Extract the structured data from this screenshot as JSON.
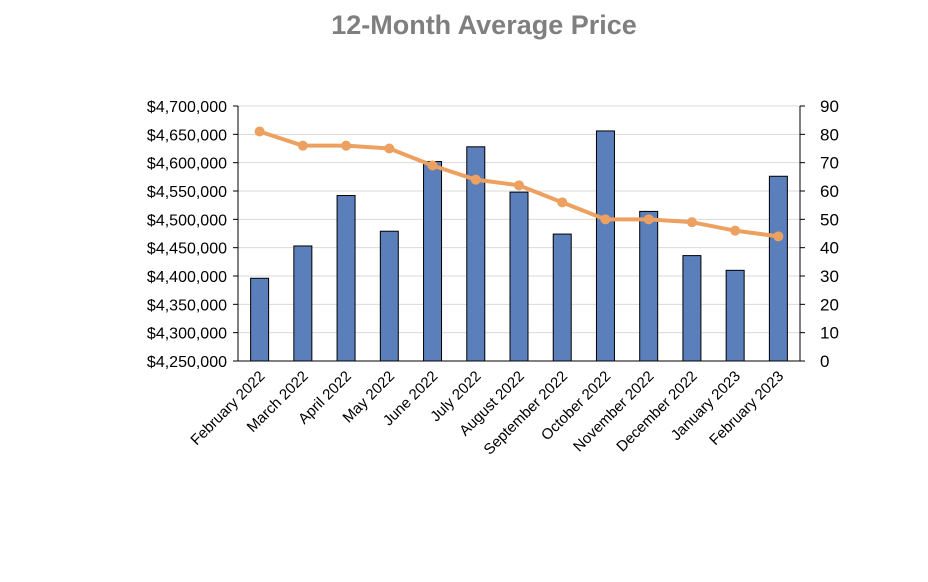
{
  "chart_data": {
    "type": "bar",
    "title": "12-Month Average Price",
    "categories": [
      "February 2022",
      "March 2022",
      "April 2022",
      "May 2022",
      "June 2022",
      "July 2022",
      "August 2022",
      "September 2022",
      "October 2022",
      "November 2022",
      "December 2022",
      "January 2023",
      "February 2023"
    ],
    "series": [
      {
        "type": "bar",
        "axis": "left",
        "color": "#5b7fba",
        "values": [
          4396000,
          4453000,
          4542000,
          4479000,
          4602000,
          4628000,
          4548000,
          4474000,
          4656000,
          4514000,
          4436000,
          4410000,
          4576000
        ]
      },
      {
        "type": "line",
        "axis": "right",
        "color": "#eda161",
        "values": [
          81,
          76,
          76,
          75,
          69,
          64,
          62,
          56,
          50,
          50,
          49,
          46,
          44
        ]
      }
    ],
    "y_left": {
      "ylim": [
        4250000,
        4700000
      ],
      "ticks": [
        "$4,250,000",
        "$4,300,000",
        "$4,350,000",
        "$4,400,000",
        "$4,450,000",
        "$4,500,000",
        "$4,550,000",
        "$4,600,000",
        "$4,650,000",
        "$4,700,000"
      ]
    },
    "y_right": {
      "ylim": [
        0,
        90
      ],
      "ticks": [
        "0",
        "10",
        "20",
        "30",
        "40",
        "50",
        "60",
        "70",
        "80",
        "90"
      ]
    },
    "grid": true,
    "legend": "none"
  }
}
